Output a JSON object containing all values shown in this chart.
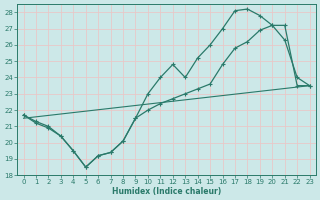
{
  "xlabel": "Humidex (Indice chaleur)",
  "xlim": [
    -0.5,
    23.5
  ],
  "ylim": [
    18,
    28.5
  ],
  "yticks": [
    18,
    19,
    20,
    21,
    22,
    23,
    24,
    25,
    26,
    27,
    28
  ],
  "xticks": [
    0,
    1,
    2,
    3,
    4,
    5,
    6,
    7,
    8,
    9,
    10,
    11,
    12,
    13,
    14,
    15,
    16,
    17,
    18,
    19,
    20,
    21,
    22,
    23
  ],
  "bg_color": "#cce8e8",
  "grid_color": "#b0d4d4",
  "line_color": "#2a7a6a",
  "curve1_x": [
    0,
    1,
    2,
    3,
    4,
    5,
    6,
    7,
    8,
    9,
    10,
    11,
    12,
    13,
    14,
    15,
    16,
    17,
    18,
    19,
    20,
    21,
    22,
    23
  ],
  "curve1_y": [
    21.7,
    21.3,
    21.0,
    20.4,
    19.5,
    18.5,
    19.2,
    19.4,
    20.1,
    21.5,
    23.0,
    24.0,
    24.8,
    24.0,
    25.2,
    26.0,
    27.0,
    28.1,
    28.2,
    27.8,
    27.2,
    26.3,
    24.0,
    23.5
  ],
  "curve2_x": [
    0,
    1,
    2,
    3,
    4,
    5,
    6,
    7,
    8,
    9,
    10,
    11,
    12,
    13,
    14,
    15,
    16,
    17,
    18,
    19,
    20,
    21,
    22,
    23
  ],
  "curve2_y": [
    21.7,
    21.2,
    20.9,
    20.4,
    19.5,
    18.5,
    19.2,
    19.4,
    20.1,
    21.5,
    22.0,
    22.4,
    22.7,
    23.0,
    23.3,
    23.6,
    24.8,
    25.8,
    26.2,
    26.9,
    27.2,
    27.2,
    23.5,
    23.5
  ],
  "line3_x": [
    0,
    23
  ],
  "line3_y": [
    21.5,
    23.5
  ]
}
